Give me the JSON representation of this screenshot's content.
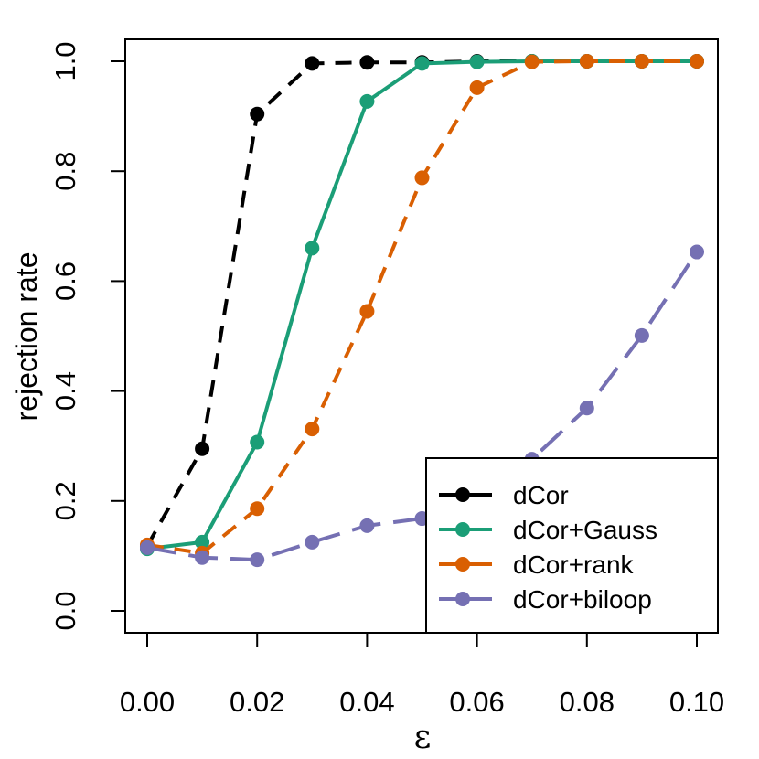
{
  "chart_data": {
    "type": "line",
    "xlabel": "ε",
    "ylabel": "rejection rate",
    "xlim": [
      0,
      0.1
    ],
    "ylim": [
      0,
      1
    ],
    "xticks": [
      "0.00",
      "0.02",
      "0.04",
      "0.06",
      "0.08",
      "0.10"
    ],
    "yticks": [
      "0.0",
      "0.2",
      "0.4",
      "0.6",
      "0.8",
      "1.0"
    ],
    "grid": false,
    "legend_position": "bottom-right",
    "x": [
      0,
      0.01,
      0.02,
      0.03,
      0.04,
      0.05,
      0.06,
      0.07,
      0.08,
      0.09,
      0.1
    ],
    "series": [
      {
        "name": "dCor",
        "color": "#000000",
        "values": [
          0.118,
          0.295,
          0.904,
          0.996,
          0.998,
          0.998,
          1.0,
          1.0,
          1.0,
          1.0,
          1.0
        ]
      },
      {
        "name": "dCor+Gauss",
        "color": "#1b9e77",
        "values": [
          0.113,
          0.125,
          0.307,
          0.66,
          0.927,
          0.996,
          0.999,
          1.0,
          1.0,
          1.0,
          1.0
        ]
      },
      {
        "name": "dCor+rank",
        "color": "#d95f02",
        "values": [
          0.12,
          0.105,
          0.186,
          0.331,
          0.545,
          0.788,
          0.952,
          0.999,
          1.0,
          1.0,
          1.0
        ]
      },
      {
        "name": "dCor+biloop",
        "color": "#7570b3",
        "values": [
          0.115,
          0.097,
          0.093,
          0.125,
          0.155,
          0.168,
          0.198,
          0.276,
          0.369,
          0.501,
          0.653
        ]
      }
    ]
  }
}
